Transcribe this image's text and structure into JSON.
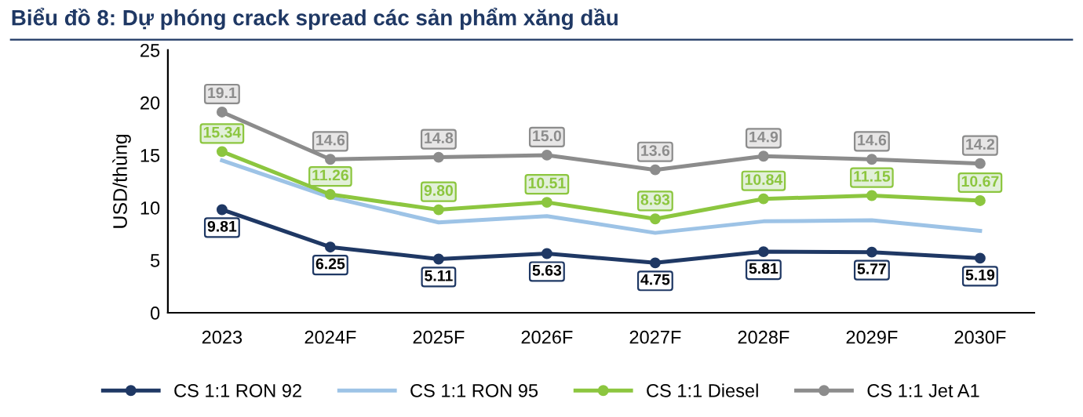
{
  "chart_data": {
    "type": "line",
    "title": "Biểu đồ 8: Dự phóng crack spread các sản phẩm xăng dầu",
    "ylabel": "USD/thùng",
    "categories": [
      "2023",
      "2024F",
      "2025F",
      "2026F",
      "2027F",
      "2028F",
      "2029F",
      "2030F"
    ],
    "series": [
      {
        "name": "CS 1:1 RON 92",
        "color": "#1f3864",
        "marker": "circle",
        "values": [
          9.81,
          6.25,
          5.11,
          5.63,
          4.75,
          5.81,
          5.77,
          5.19
        ],
        "value_labels": [
          "9.81",
          "6.25",
          "5.11",
          "5.63",
          "4.75",
          "5.81",
          "5.77",
          "5.19"
        ]
      },
      {
        "name": "CS 1:1 RON 95",
        "color": "#9dc3e6",
        "marker": "none",
        "values": [
          14.5,
          11.0,
          8.6,
          9.2,
          7.6,
          8.7,
          8.8,
          7.8
        ]
      },
      {
        "name": "CS 1:1 Diesel",
        "color": "#8cc63f",
        "marker": "circle",
        "values": [
          15.34,
          11.26,
          9.8,
          10.51,
          8.93,
          10.84,
          11.15,
          10.67
        ],
        "value_labels": [
          "15.34",
          "11.26",
          "9.80",
          "10.51",
          "8.93",
          "10.84",
          "11.15",
          "10.67"
        ]
      },
      {
        "name": "CS 1:1 Jet A1",
        "color": "#8c8c8c",
        "marker": "circle",
        "values": [
          19.1,
          14.6,
          14.8,
          15.0,
          13.6,
          14.9,
          14.6,
          14.2
        ],
        "value_labels": [
          "19.1",
          "14.6",
          "14.8",
          "15.0",
          "13.6",
          "14.9",
          "14.6",
          "14.2"
        ]
      }
    ],
    "ylim": [
      0,
      25
    ],
    "yticks": [
      0,
      5,
      10,
      15,
      20,
      25
    ],
    "grid": false,
    "legend": "bottom",
    "line_style": "solid"
  }
}
